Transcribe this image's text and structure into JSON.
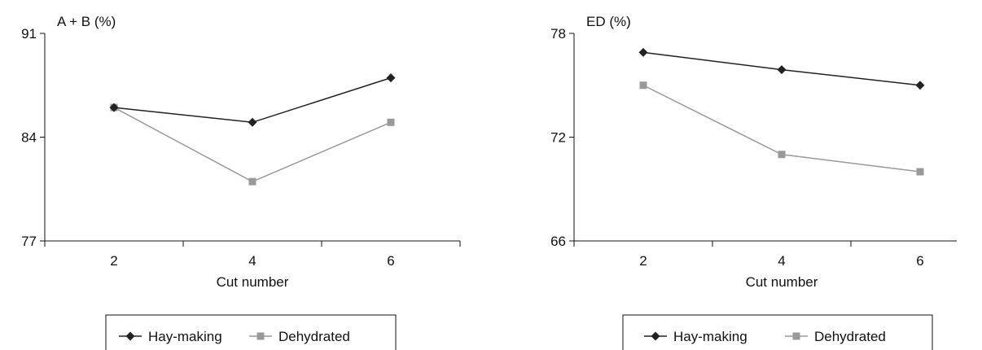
{
  "chart_data": [
    {
      "type": "line",
      "ylabel": "A + B (%)",
      "xlabel": "Cut number",
      "categories": [
        "2",
        "4",
        "6"
      ],
      "yticks": [
        77,
        84,
        91
      ],
      "ylim": [
        77,
        91
      ],
      "series": [
        {
          "name": "Hay-making",
          "values": [
            86.0,
            85.0,
            88.0
          ],
          "color": "#222222",
          "marker": "diamond"
        },
        {
          "name": "Dehydrated",
          "values": [
            86.0,
            81.0,
            85.0
          ],
          "color": "#999999",
          "marker": "square"
        }
      ],
      "legend": "bottom"
    },
    {
      "type": "line",
      "ylabel": "ED (%)",
      "xlabel": "Cut number",
      "categories": [
        "2",
        "4",
        "6"
      ],
      "yticks": [
        66,
        72,
        78
      ],
      "ylim": [
        66,
        78
      ],
      "series": [
        {
          "name": "Hay-making",
          "values": [
            76.9,
            75.9,
            75.0
          ],
          "color": "#222222",
          "marker": "diamond"
        },
        {
          "name": "Dehydrated",
          "values": [
            75.0,
            71.0,
            70.0
          ],
          "color": "#999999",
          "marker": "square"
        }
      ],
      "legend": "bottom"
    }
  ]
}
